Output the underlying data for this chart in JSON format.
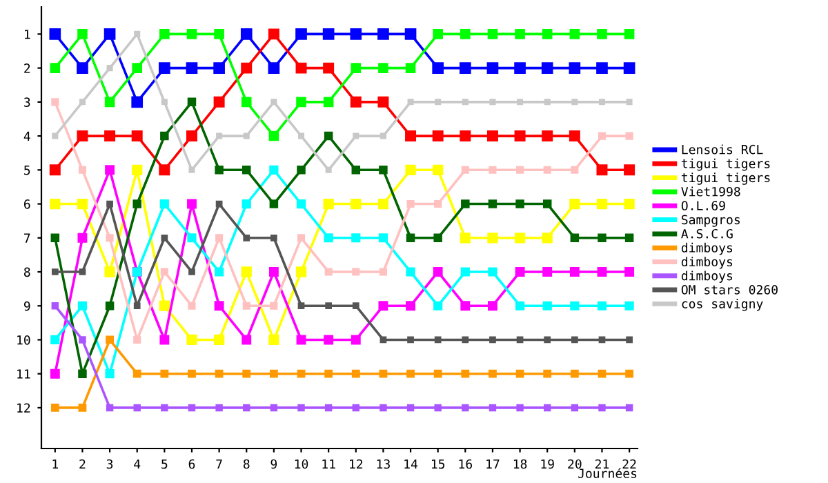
{
  "chart_data": {
    "type": "line",
    "xlabel": "Journées",
    "x": [
      1,
      2,
      3,
      4,
      5,
      6,
      7,
      8,
      9,
      10,
      11,
      12,
      13,
      14,
      15,
      16,
      17,
      18,
      19,
      20,
      21,
      22
    ],
    "xlim": [
      0.5,
      22.3
    ],
    "ylim": [
      13.2,
      0.2
    ],
    "xticks": [
      1,
      2,
      3,
      4,
      5,
      6,
      7,
      8,
      9,
      10,
      11,
      12,
      13,
      14,
      15,
      16,
      17,
      18,
      19,
      20,
      21,
      22
    ],
    "yticks": [
      1,
      2,
      3,
      4,
      5,
      6,
      7,
      8,
      9,
      10,
      11,
      12
    ],
    "grid": false,
    "legend": "right",
    "marker": "square",
    "line_style": "solid",
    "series": [
      {
        "name": "Lensois RCL",
        "color": "#0000ff",
        "values": [
          1,
          2,
          1,
          3,
          2,
          2,
          2,
          1,
          2,
          1,
          1,
          1,
          1,
          1,
          2,
          2,
          2,
          2,
          2,
          2,
          2,
          2
        ]
      },
      {
        "name": "tigui tigers",
        "color": "#ff0000",
        "values": [
          5,
          4,
          4,
          4,
          5,
          4,
          3,
          2,
          1,
          2,
          2,
          3,
          3,
          4,
          4,
          4,
          4,
          4,
          4,
          4,
          5,
          5
        ]
      },
      {
        "name": "tigui tigers",
        "color": "#ffff00",
        "values": [
          6,
          6,
          8,
          5,
          9,
          10,
          10,
          8,
          10,
          8,
          6,
          6,
          6,
          5,
          5,
          7,
          7,
          7,
          7,
          6,
          6,
          6
        ]
      },
      {
        "name": "Viet1998",
        "color": "#00ff00",
        "values": [
          2,
          1,
          3,
          2,
          1,
          1,
          1,
          3,
          4,
          3,
          3,
          2,
          2,
          2,
          1,
          1,
          1,
          1,
          1,
          1,
          1,
          1
        ]
      },
      {
        "name": "O.L.69",
        "color": "#ff00ff",
        "values": [
          11,
          7,
          5,
          8,
          10,
          6,
          9,
          10,
          8,
          10,
          10,
          10,
          9,
          9,
          8,
          9,
          9,
          8,
          8,
          8,
          8,
          8
        ]
      },
      {
        "name": "Sampgros",
        "color": "#00ffff",
        "values": [
          10,
          9,
          11,
          8,
          6,
          7,
          8,
          6,
          5,
          6,
          7,
          7,
          7,
          8,
          9,
          8,
          8,
          9,
          9,
          9,
          9,
          9
        ]
      },
      {
        "name": "A.S.C.G",
        "color": "#006400",
        "values": [
          7,
          11,
          9,
          6,
          4,
          3,
          5,
          5,
          6,
          5,
          4,
          5,
          5,
          7,
          7,
          6,
          6,
          6,
          6,
          7,
          7,
          7
        ]
      },
      {
        "name": "dimboys",
        "color": "#ff9900",
        "values": [
          12,
          12,
          10,
          11,
          11,
          11,
          11,
          11,
          11,
          11,
          11,
          11,
          11,
          11,
          11,
          11,
          11,
          11,
          11,
          11,
          11,
          11
        ]
      },
      {
        "name": "dimboys",
        "color": "#ffc0c0",
        "values": [
          3,
          5,
          7,
          10,
          8,
          9,
          7,
          9,
          9,
          7,
          8,
          8,
          8,
          6,
          6,
          5,
          5,
          5,
          5,
          5,
          4,
          4
        ]
      },
      {
        "name": "dimboys",
        "color": "#aa55ff",
        "values": [
          9,
          10,
          12,
          12,
          12,
          12,
          12,
          12,
          12,
          12,
          12,
          12,
          12,
          12,
          12,
          12,
          12,
          12,
          12,
          12,
          12,
          12
        ]
      },
      {
        "name": "OM stars 0260",
        "color": "#555555",
        "values": [
          8,
          8,
          6,
          9,
          7,
          8,
          6,
          7,
          7,
          9,
          9,
          9,
          10,
          10,
          10,
          10,
          10,
          10,
          10,
          10,
          10,
          10
        ]
      },
      {
        "name": "cos savigny",
        "color": "#c8c8c8",
        "values": [
          4,
          3,
          2,
          1,
          3,
          5,
          4,
          4,
          3,
          4,
          5,
          4,
          4,
          3,
          3,
          3,
          3,
          3,
          3,
          3,
          3,
          3
        ]
      }
    ]
  }
}
